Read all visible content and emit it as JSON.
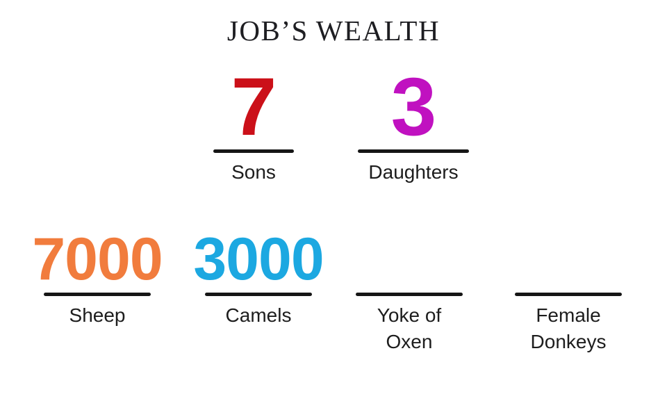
{
  "title": "JOB’S WEALTH",
  "colors": {
    "background": "#ffffff",
    "title_text": "#1e1e22",
    "label_text": "#1d1d1d",
    "rule": "#161616",
    "sons_value": "#cb1019",
    "daughters_value": "#c011c0",
    "sheep_value": "#f17c3d",
    "camels_value": "#1ca8e1"
  },
  "stats": [
    {
      "value": "7",
      "label": "Sons",
      "color": "#cb1019"
    },
    {
      "value": "3",
      "label": "Daughters",
      "color": "#c011c0"
    },
    {
      "value": "7000",
      "label": "Sheep",
      "color": "#f17c3d"
    },
    {
      "value": "3000",
      "label": "Camels",
      "color": "#1ca8e1"
    },
    {
      "value": "",
      "label": "Yoke of\nOxen",
      "color": ""
    },
    {
      "value": "",
      "label": "Female\nDonkeys",
      "color": ""
    }
  ],
  "chart_data": {
    "type": "table",
    "title": "JOB’S WEALTH",
    "categories": [
      "Sons",
      "Daughters",
      "Sheep",
      "Camels",
      "Yoke of Oxen",
      "Female Donkeys"
    ],
    "values": [
      7,
      3,
      7000,
      3000,
      null,
      null
    ],
    "legend_position": "none",
    "grid": false
  }
}
